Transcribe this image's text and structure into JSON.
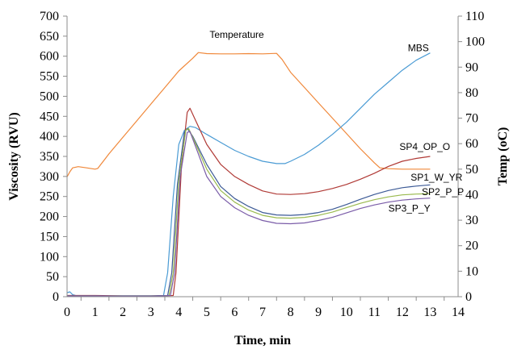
{
  "chart_data": {
    "type": "line",
    "title": "",
    "xlabel": "Time, min",
    "ylabel": "Viscosity (RVU)",
    "y2label": "Temp (oC)",
    "xlim": [
      0,
      14
    ],
    "ylim": [
      0,
      700
    ],
    "y2lim": [
      0,
      110
    ],
    "x_ticks": [
      0,
      1,
      2,
      3,
      4,
      5,
      6,
      7,
      8,
      9,
      10,
      11,
      12,
      13,
      14
    ],
    "y_ticks": [
      0,
      50,
      100,
      150,
      200,
      250,
      300,
      350,
      400,
      450,
      500,
      550,
      600,
      650,
      700
    ],
    "y2_ticks": [
      0,
      10,
      20,
      30,
      40,
      50,
      60,
      70,
      80,
      90,
      100,
      110
    ],
    "grid": false,
    "legend": "labels next to lines",
    "series": [
      {
        "name": "Temperature",
        "axis": "right",
        "color": "#f0883a",
        "points": [
          [
            0,
            47
          ],
          [
            0.1,
            49
          ],
          [
            0.2,
            50.5
          ],
          [
            0.4,
            51
          ],
          [
            0.7,
            50.5
          ],
          [
            1.0,
            50
          ],
          [
            1.1,
            50.3
          ],
          [
            1.5,
            56
          ],
          [
            2.0,
            62.5
          ],
          [
            2.5,
            69
          ],
          [
            3.0,
            75.5
          ],
          [
            3.5,
            82
          ],
          [
            4.0,
            88.5
          ],
          [
            4.5,
            93.5
          ],
          [
            4.7,
            95.7
          ],
          [
            5.0,
            95.3
          ],
          [
            5.5,
            95.2
          ],
          [
            6.0,
            95.2
          ],
          [
            6.5,
            95.3
          ],
          [
            7.0,
            95.2
          ],
          [
            7.5,
            95.4
          ],
          [
            7.7,
            93
          ],
          [
            8.0,
            88
          ],
          [
            8.5,
            82
          ],
          [
            9.0,
            76
          ],
          [
            9.5,
            70
          ],
          [
            10.0,
            64
          ],
          [
            10.5,
            58
          ],
          [
            11.0,
            52.5
          ],
          [
            11.2,
            50.5
          ],
          [
            11.5,
            50.2
          ],
          [
            12.0,
            50
          ],
          [
            12.5,
            50
          ],
          [
            13.0,
            50
          ]
        ]
      },
      {
        "name": "MBS",
        "axis": "left",
        "color": "#4a9bd4",
        "points": [
          [
            0,
            10
          ],
          [
            0.1,
            12
          ],
          [
            0.2,
            5
          ],
          [
            0.3,
            3
          ],
          [
            0.5,
            2
          ],
          [
            1.0,
            2
          ],
          [
            2.0,
            1
          ],
          [
            3.0,
            1
          ],
          [
            3.45,
            2
          ],
          [
            3.6,
            60
          ],
          [
            3.8,
            250
          ],
          [
            4.0,
            380
          ],
          [
            4.2,
            415
          ],
          [
            4.4,
            425
          ],
          [
            4.6,
            422
          ],
          [
            5.0,
            405
          ],
          [
            5.5,
            385
          ],
          [
            6.0,
            365
          ],
          [
            6.5,
            350
          ],
          [
            7.0,
            338
          ],
          [
            7.5,
            332
          ],
          [
            7.8,
            332
          ],
          [
            8.0,
            338
          ],
          [
            8.5,
            355
          ],
          [
            9.0,
            378
          ],
          [
            9.5,
            405
          ],
          [
            10.0,
            435
          ],
          [
            10.5,
            470
          ],
          [
            11.0,
            505
          ],
          [
            11.5,
            535
          ],
          [
            12.0,
            565
          ],
          [
            12.5,
            590
          ],
          [
            13.0,
            608
          ]
        ]
      },
      {
        "name": "SP4_OP_O",
        "axis": "left",
        "color": "#b03a36",
        "points": [
          [
            0,
            3
          ],
          [
            1.0,
            3
          ],
          [
            2.0,
            2
          ],
          [
            3.0,
            2
          ],
          [
            3.8,
            3
          ],
          [
            3.9,
            60
          ],
          [
            4.1,
            330
          ],
          [
            4.3,
            460
          ],
          [
            4.4,
            470
          ],
          [
            4.6,
            440
          ],
          [
            5.0,
            380
          ],
          [
            5.5,
            330
          ],
          [
            6.0,
            300
          ],
          [
            6.5,
            280
          ],
          [
            7.0,
            264
          ],
          [
            7.5,
            256
          ],
          [
            8.0,
            255
          ],
          [
            8.5,
            257
          ],
          [
            9.0,
            262
          ],
          [
            9.5,
            270
          ],
          [
            10.0,
            280
          ],
          [
            10.5,
            293
          ],
          [
            11.0,
            308
          ],
          [
            11.5,
            325
          ],
          [
            12.0,
            338
          ],
          [
            12.5,
            345
          ],
          [
            13.0,
            350
          ]
        ]
      },
      {
        "name": "SP1_W_YR",
        "axis": "left",
        "color": "#3c5a96",
        "points": [
          [
            0,
            2
          ],
          [
            1.0,
            2
          ],
          [
            2.0,
            2
          ],
          [
            3.0,
            2
          ],
          [
            3.6,
            3
          ],
          [
            3.75,
            60
          ],
          [
            3.95,
            280
          ],
          [
            4.2,
            410
          ],
          [
            4.3,
            420
          ],
          [
            4.5,
            400
          ],
          [
            5.0,
            330
          ],
          [
            5.5,
            275
          ],
          [
            6.0,
            245
          ],
          [
            6.5,
            225
          ],
          [
            7.0,
            210
          ],
          [
            7.5,
            204
          ],
          [
            8.0,
            203
          ],
          [
            8.5,
            205
          ],
          [
            9.0,
            210
          ],
          [
            9.5,
            218
          ],
          [
            10.0,
            230
          ],
          [
            10.5,
            243
          ],
          [
            11.0,
            255
          ],
          [
            11.5,
            265
          ],
          [
            12.0,
            272
          ],
          [
            12.5,
            276
          ],
          [
            13.0,
            279
          ]
        ]
      },
      {
        "name": "SP2_P_P",
        "axis": "left",
        "color": "#9aba4e",
        "points": [
          [
            0,
            2
          ],
          [
            1.0,
            2
          ],
          [
            2.0,
            1
          ],
          [
            3.0,
            1
          ],
          [
            3.65,
            3
          ],
          [
            3.8,
            60
          ],
          [
            4.0,
            290
          ],
          [
            4.25,
            415
          ],
          [
            4.35,
            420
          ],
          [
            4.55,
            390
          ],
          [
            5.0,
            318
          ],
          [
            5.5,
            265
          ],
          [
            6.0,
            236
          ],
          [
            6.5,
            216
          ],
          [
            7.0,
            203
          ],
          [
            7.5,
            197
          ],
          [
            8.0,
            196
          ],
          [
            8.5,
            198
          ],
          [
            9.0,
            203
          ],
          [
            9.5,
            211
          ],
          [
            10.0,
            222
          ],
          [
            10.5,
            233
          ],
          [
            11.0,
            242
          ],
          [
            11.5,
            249
          ],
          [
            12.0,
            254
          ],
          [
            12.5,
            256
          ],
          [
            13.0,
            257
          ]
        ]
      },
      {
        "name": "SP3_P_Y",
        "axis": "left",
        "color": "#7a5ca8",
        "points": [
          [
            0,
            2
          ],
          [
            1.0,
            2
          ],
          [
            2.0,
            1
          ],
          [
            3.0,
            1
          ],
          [
            3.7,
            3
          ],
          [
            3.85,
            60
          ],
          [
            4.05,
            300
          ],
          [
            4.3,
            410
          ],
          [
            4.4,
            412
          ],
          [
            4.6,
            375
          ],
          [
            5.0,
            300
          ],
          [
            5.5,
            250
          ],
          [
            6.0,
            222
          ],
          [
            6.5,
            203
          ],
          [
            7.0,
            190
          ],
          [
            7.5,
            183
          ],
          [
            8.0,
            182
          ],
          [
            8.5,
            184
          ],
          [
            9.0,
            190
          ],
          [
            9.5,
            198
          ],
          [
            10.0,
            209
          ],
          [
            10.5,
            220
          ],
          [
            11.0,
            229
          ],
          [
            11.5,
            236
          ],
          [
            12.0,
            241
          ],
          [
            12.5,
            244
          ],
          [
            13.0,
            246
          ]
        ]
      }
    ],
    "annotations": [
      {
        "text": "Temperature",
        "series": "Temperature",
        "x": 5.1,
        "y": 101.5,
        "axis": "right"
      },
      {
        "text": "MBS",
        "series": "MBS",
        "x": 12.2,
        "y": 613,
        "axis": "left"
      },
      {
        "text": "SP4_OP_O",
        "series": "SP4_OP_O",
        "x": 11.9,
        "y": 366,
        "axis": "left"
      },
      {
        "text": "SP1_W_YR",
        "series": "SP1_W_YR",
        "x": 12.3,
        "y": 290,
        "axis": "left"
      },
      {
        "text": "SP2_P_P",
        "series": "SP2_P_P",
        "x": 12.7,
        "y": 253,
        "axis": "left"
      },
      {
        "text": "SP3_P_Y",
        "series": "SP3_P_Y",
        "x": 11.5,
        "y": 212,
        "axis": "left"
      }
    ]
  }
}
